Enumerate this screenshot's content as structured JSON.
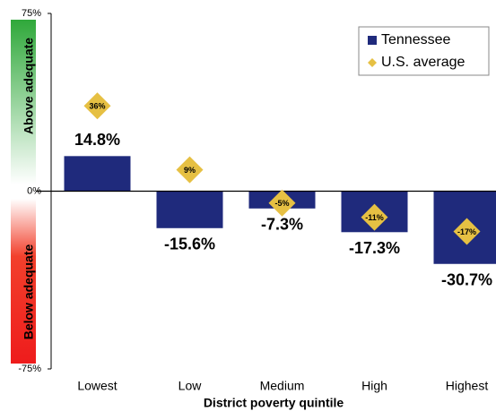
{
  "chart_data": {
    "type": "bar",
    "x_label": "District poverty quintile",
    "annotations": [
      "Above adequate",
      "Below adequate"
    ],
    "categories": [
      "Lowest",
      "Low",
      "Medium",
      "High",
      "Highest"
    ],
    "series": [
      {
        "name": "Tennessee",
        "color": "#1f2a7c",
        "type": "bar",
        "values": [
          14.8,
          -15.6,
          -7.3,
          -17.3,
          -30.7
        ],
        "value_labels": [
          "14.8%",
          "-15.6%",
          "-7.3%",
          "-17.3%",
          "-30.7%"
        ]
      },
      {
        "name": "U.S. average",
        "color": "#e6c043",
        "type": "diamond",
        "values": [
          36,
          9,
          -5,
          -11,
          -17
        ],
        "value_labels": [
          "36%",
          "9%",
          "-5%",
          "-11%",
          "-17%"
        ]
      }
    ],
    "ylim": [
      -75,
      75
    ],
    "yticks": [
      {
        "value": -75,
        "label": "-75%"
      },
      {
        "value": 0,
        "label": "0%"
      },
      {
        "value": 75,
        "label": "75%"
      }
    ],
    "legend": "upper right"
  }
}
